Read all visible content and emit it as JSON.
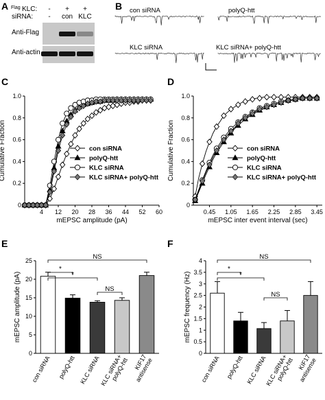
{
  "panels": {
    "A": "A",
    "B": "B",
    "C": "C",
    "D": "D",
    "E": "E",
    "F": "F"
  },
  "panelA": {
    "row1_label": "Flag",
    "row1_label_suffix": "KLC:",
    "row2_label": "siRNA:",
    "row1_values": [
      "-",
      "+",
      "+"
    ],
    "row2_values": [
      "-",
      "con",
      "KLC"
    ],
    "blot1_label": "Anti-Flag",
    "blot2_label": "Anti-actin",
    "flag_band_intensity": [
      0,
      1,
      0.35
    ],
    "actin_band_intensity": [
      1,
      1,
      1
    ]
  },
  "panelB": {
    "traces": [
      "con siRNA",
      "polyQ-htt",
      "KLC siRNA",
      "KLC siRNA+ polyQ-htt"
    ]
  },
  "chart_data": [
    {
      "panel": "C",
      "type": "line",
      "xlabel": "mEPSC amplitude (pA)",
      "ylabel": "Cumulative Fraction",
      "xlim": [
        -4,
        60
      ],
      "ylim": [
        0,
        1.0
      ],
      "xticks": [
        4,
        12,
        20,
        28,
        36,
        44,
        52,
        60
      ],
      "xtick_labels": [
        "4",
        "12",
        "20",
        "28",
        "36",
        "44",
        "52",
        "60"
      ],
      "yticks": [
        0,
        0.2,
        0.4,
        0.6,
        0.8,
        1.0
      ],
      "ytick_labels": [
        "0",
        "0.2",
        "0.4",
        "0.6",
        "0.8",
        "1.0"
      ],
      "legend_position": "lower-right",
      "series": [
        {
          "name": "con siRNA",
          "marker": "diamond-open",
          "x": [
            -4,
            -2,
            0,
            2,
            4,
            6,
            8,
            10,
            12,
            14,
            16,
            18,
            20,
            22,
            24,
            26,
            28,
            30,
            32,
            34,
            36,
            38,
            40,
            42,
            44,
            46,
            48,
            50,
            52,
            54,
            56
          ],
          "y": [
            0,
            0,
            0,
            0,
            0,
            0,
            0.06,
            0.15,
            0.26,
            0.37,
            0.47,
            0.56,
            0.64,
            0.7,
            0.75,
            0.79,
            0.82,
            0.85,
            0.87,
            0.89,
            0.9,
            0.91,
            0.92,
            0.93,
            0.94,
            0.94,
            0.95,
            0.95,
            0.96,
            0.96,
            0.96
          ]
        },
        {
          "name": "polyQ-htt",
          "marker": "triangle-filled",
          "x": [
            -4,
            -2,
            0,
            2,
            4,
            6,
            8,
            10,
            12,
            14,
            16,
            18,
            20,
            22,
            24,
            26,
            28,
            30,
            32,
            34,
            36,
            38,
            40,
            42,
            44,
            46,
            48,
            50,
            52,
            54,
            56
          ],
          "y": [
            0,
            0,
            0,
            0,
            0,
            0,
            0.14,
            0.34,
            0.54,
            0.68,
            0.77,
            0.83,
            0.87,
            0.9,
            0.92,
            0.93,
            0.94,
            0.95,
            0.95,
            0.96,
            0.96,
            0.96,
            0.97,
            0.97,
            0.97,
            0.97,
            0.97,
            0.97,
            0.97,
            0.97,
            0.97
          ]
        },
        {
          "name": "KLC siRNA",
          "marker": "circle-open",
          "x": [
            -4,
            -2,
            0,
            2,
            4,
            6,
            8,
            10,
            12,
            14,
            16,
            18,
            20,
            22,
            24,
            26,
            28,
            30,
            32,
            34,
            36,
            38,
            40,
            42,
            44,
            46,
            48,
            50,
            52,
            54,
            56
          ],
          "y": [
            0,
            0,
            0,
            0,
            0,
            0,
            0.18,
            0.4,
            0.6,
            0.75,
            0.84,
            0.89,
            0.92,
            0.94,
            0.95,
            0.96,
            0.96,
            0.97,
            0.97,
            0.97,
            0.97,
            0.97,
            0.97,
            0.97,
            0.97,
            0.97,
            0.97,
            0.97,
            0.97,
            0.97,
            0.97
          ]
        },
        {
          "name": "KLC siRNA+ polyQ-htt",
          "marker": "diamond-filled",
          "x": [
            -4,
            -2,
            0,
            2,
            4,
            6,
            8,
            10,
            12,
            14,
            16,
            18,
            20,
            22,
            24,
            26,
            28,
            30,
            32,
            34,
            36,
            38,
            40,
            42,
            44,
            46,
            48,
            50,
            52,
            54,
            56
          ],
          "y": [
            0,
            0,
            0,
            0,
            0,
            0,
            0.12,
            0.31,
            0.5,
            0.64,
            0.74,
            0.81,
            0.86,
            0.89,
            0.91,
            0.93,
            0.94,
            0.95,
            0.95,
            0.96,
            0.96,
            0.96,
            0.96,
            0.96,
            0.96,
            0.96,
            0.96,
            0.96,
            0.96,
            0.96,
            0.96
          ]
        }
      ]
    },
    {
      "panel": "D",
      "type": "line",
      "xlabel": "mEPSC inter event interval (sec)",
      "ylabel": "Cumulative Fraction",
      "xlim": [
        0,
        3.6
      ],
      "ylim": [
        0,
        1.0
      ],
      "xticks": [
        0.45,
        1.05,
        1.65,
        2.25,
        2.85,
        3.45
      ],
      "xtick_labels": [
        "0.45",
        "1.05",
        "1.65",
        "2.25",
        "2.85",
        "3.45"
      ],
      "yticks": [
        0,
        0.2,
        0.4,
        0.6,
        0.8,
        1.0
      ],
      "ytick_labels": [
        "0",
        "0.2",
        "0.4",
        "0.6",
        "0.8",
        "1.0"
      ],
      "legend_position": "lower-right",
      "series": [
        {
          "name": "con siRNA",
          "marker": "diamond-open",
          "x": [
            0.05,
            0.15,
            0.25,
            0.35,
            0.45,
            0.55,
            0.65,
            0.75,
            0.85,
            0.95,
            1.05,
            1.15,
            1.25,
            1.35,
            1.45,
            1.55,
            1.65,
            1.75,
            1.85,
            1.95,
            2.05,
            2.15,
            2.25,
            2.35,
            2.45,
            2.55,
            2.65,
            2.75,
            2.85,
            2.95,
            3.05,
            3.15,
            3.25,
            3.35,
            3.45
          ],
          "y": [
            0.08,
            0.25,
            0.38,
            0.49,
            0.58,
            0.66,
            0.72,
            0.77,
            0.82,
            0.85,
            0.88,
            0.9,
            0.92,
            0.94,
            0.95,
            0.96,
            0.97,
            0.98,
            0.98,
            0.99,
            0.99,
            0.99,
            0.99,
            0.99,
            0.99,
            0.99,
            0.99,
            0.99,
            0.99,
            0.99,
            0.99,
            0.99,
            0.99,
            0.99,
            0.99
          ]
        },
        {
          "name": "polyQ-htt",
          "marker": "triangle-filled",
          "x": [
            0.05,
            0.15,
            0.25,
            0.35,
            0.45,
            0.55,
            0.65,
            0.75,
            0.85,
            0.95,
            1.05,
            1.15,
            1.25,
            1.35,
            1.45,
            1.55,
            1.65,
            1.75,
            1.85,
            1.95,
            2.05,
            2.15,
            2.25,
            2.35,
            2.45,
            2.55,
            2.65,
            2.75,
            2.85,
            2.95,
            3.05,
            3.15,
            3.25,
            3.35,
            3.45
          ],
          "y": [
            0.04,
            0.12,
            0.2,
            0.28,
            0.35,
            0.42,
            0.48,
            0.53,
            0.58,
            0.62,
            0.66,
            0.7,
            0.73,
            0.76,
            0.79,
            0.81,
            0.83,
            0.85,
            0.87,
            0.88,
            0.9,
            0.91,
            0.92,
            0.93,
            0.94,
            0.95,
            0.96,
            0.96,
            0.97,
            0.97,
            0.98,
            0.98,
            0.98,
            0.98,
            0.98
          ]
        },
        {
          "name": "KLC siRNA",
          "marker": "circle-open",
          "x": [
            0.05,
            0.15,
            0.25,
            0.35,
            0.45,
            0.55,
            0.65,
            0.75,
            0.85,
            0.95,
            1.05,
            1.15,
            1.25,
            1.35,
            1.45,
            1.55,
            1.65,
            1.75,
            1.85,
            1.95,
            2.05,
            2.15,
            2.25,
            2.35,
            2.45,
            2.55,
            2.65,
            2.75,
            2.85,
            2.95,
            3.05,
            3.15,
            3.25,
            3.35,
            3.45
          ],
          "y": [
            0.05,
            0.14,
            0.23,
            0.31,
            0.39,
            0.46,
            0.52,
            0.57,
            0.62,
            0.66,
            0.7,
            0.73,
            0.76,
            0.79,
            0.81,
            0.83,
            0.85,
            0.87,
            0.89,
            0.9,
            0.91,
            0.92,
            0.93,
            0.94,
            0.95,
            0.96,
            0.96,
            0.97,
            0.97,
            0.98,
            0.98,
            0.98,
            0.98,
            0.98,
            0.98
          ]
        },
        {
          "name": "KLC siRNA+ polyQ-htt",
          "marker": "diamond-filled",
          "x": [
            0.05,
            0.15,
            0.25,
            0.35,
            0.45,
            0.55,
            0.65,
            0.75,
            0.85,
            0.95,
            1.05,
            1.15,
            1.25,
            1.35,
            1.45,
            1.55,
            1.65,
            1.75,
            1.85,
            1.95,
            2.05,
            2.15,
            2.25,
            2.35,
            2.45,
            2.55,
            2.65,
            2.75,
            2.85,
            2.95,
            3.05,
            3.15,
            3.25,
            3.35,
            3.45
          ],
          "y": [
            0.05,
            0.13,
            0.22,
            0.3,
            0.37,
            0.44,
            0.5,
            0.55,
            0.6,
            0.64,
            0.68,
            0.71,
            0.75,
            0.78,
            0.8,
            0.82,
            0.84,
            0.86,
            0.88,
            0.89,
            0.9,
            0.91,
            0.92,
            0.93,
            0.94,
            0.95,
            0.96,
            0.96,
            0.97,
            0.97,
            0.98,
            0.98,
            0.98,
            0.98,
            0.98
          ]
        }
      ]
    },
    {
      "panel": "E",
      "type": "bar",
      "ylabel": "mEPSC amplitude (pA)",
      "ylim": [
        0,
        25
      ],
      "yticks": [
        0,
        5,
        10,
        15,
        20,
        25
      ],
      "ytick_labels": [
        "0",
        "5",
        "10",
        "15",
        "20",
        "25"
      ],
      "categories": [
        "con siRNA",
        "polyQ-htt",
        "KLC siRNA",
        "KLC siRNA+ polyQ-htt",
        "KIF17 antisense"
      ],
      "values": [
        20.8,
        14.9,
        13.8,
        14.3,
        21.0
      ],
      "errors": [
        1.1,
        0.9,
        0.4,
        0.7,
        0.9
      ],
      "fills": [
        "#ffffff",
        "#000000",
        "#3a3a3a",
        "#c8c8c8",
        "#8a8a8a"
      ],
      "significance": [
        {
          "from": 0,
          "to": 4,
          "label": "NS"
        },
        {
          "from": 0,
          "to": 1,
          "label": "*"
        },
        {
          "from": 0,
          "to": 2,
          "label": "*"
        },
        {
          "from": 2,
          "to": 3,
          "label": "NS"
        }
      ]
    },
    {
      "panel": "F",
      "type": "bar",
      "ylabel": "mEPSC frequency (Hz)",
      "ylim": [
        0,
        4
      ],
      "yticks": [
        0,
        0.5,
        1,
        1.5,
        2,
        2.5,
        3,
        3.5,
        4
      ],
      "ytick_labels": [
        "0",
        "0.5",
        "1",
        "1.5",
        "2",
        "2.5",
        "3",
        "3.5",
        "4"
      ],
      "categories": [
        "con siRNA",
        "polyQ-htt",
        "KLC siRNA",
        "KLC siRNA+ polyQ-htt",
        "KIF17 antisense"
      ],
      "values": [
        2.6,
        1.4,
        1.07,
        1.4,
        2.5
      ],
      "errors": [
        0.5,
        0.37,
        0.26,
        0.45,
        0.6
      ],
      "fills": [
        "#ffffff",
        "#000000",
        "#3a3a3a",
        "#c8c8c8",
        "#8a8a8a"
      ],
      "significance": [
        {
          "from": 0,
          "to": 4,
          "label": "NS"
        },
        {
          "from": 0,
          "to": 1,
          "label": "*"
        },
        {
          "from": 0,
          "to": 2,
          "label": "*"
        },
        {
          "from": 2,
          "to": 3,
          "label": "NS"
        }
      ]
    }
  ]
}
